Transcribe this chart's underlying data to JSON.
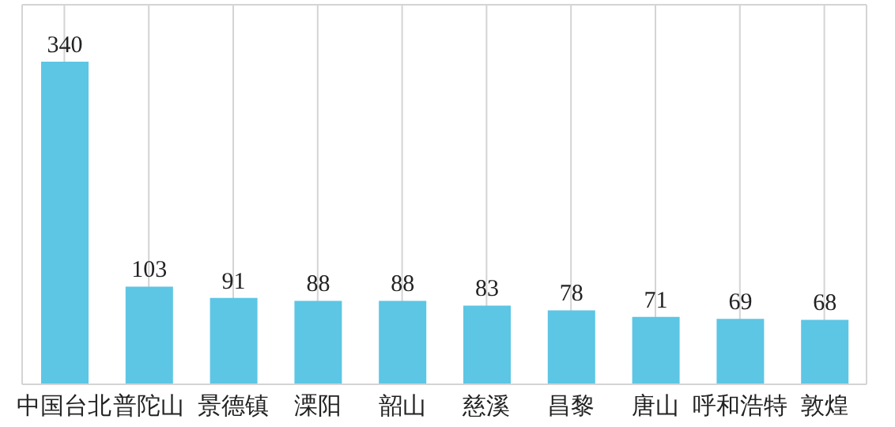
{
  "chart_data": {
    "type": "bar",
    "categories": [
      "中国台北",
      "普陀山",
      "景德镇",
      "溧阳",
      "韶山",
      "慈溪",
      "昌黎",
      "唐山",
      "呼和浩特",
      "敦煌"
    ],
    "values": [
      340,
      103,
      91,
      88,
      88,
      83,
      78,
      71,
      69,
      68
    ],
    "color": "#5cc6e4",
    "ylim": [
      0,
      400
    ],
    "grid": true,
    "tick_labels": "x",
    "data_labels": true
  }
}
